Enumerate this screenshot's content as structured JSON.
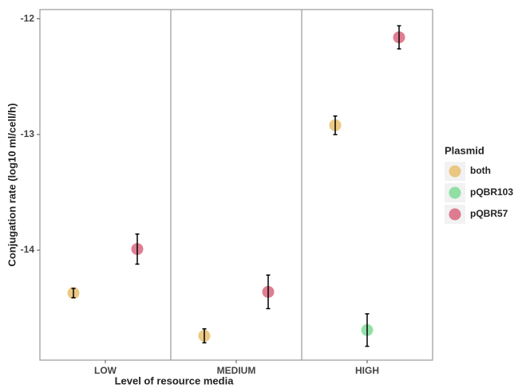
{
  "chart_data": {
    "type": "dot-errorbar",
    "x_label": "Level of resource media",
    "y_label": "Conjugation rate (log10 ml/cell/h)",
    "categories": [
      "LOW",
      "MEDIUM",
      "HIGH"
    ],
    "legend_title": "Plasmid",
    "series": [
      {
        "name": "both",
        "color": "#e9c06f",
        "values": [
          -14.37,
          -14.74,
          -12.92
        ],
        "errors": [
          0.04,
          0.06,
          0.08
        ]
      },
      {
        "name": "pQBR103",
        "color": "#7fdc98",
        "values": [
          null,
          null,
          -14.69
        ],
        "errors": [
          null,
          null,
          0.14
        ]
      },
      {
        "name": "pQBR57",
        "color": "#d9677f",
        "values": [
          -13.99,
          -14.36,
          -12.16
        ],
        "errors": [
          0.13,
          0.145,
          0.1
        ]
      }
    ],
    "ylim": [
      -14.95,
      -11.92
    ],
    "yticks": [
      -12,
      -13,
      -14
    ],
    "legend_position": "right"
  }
}
